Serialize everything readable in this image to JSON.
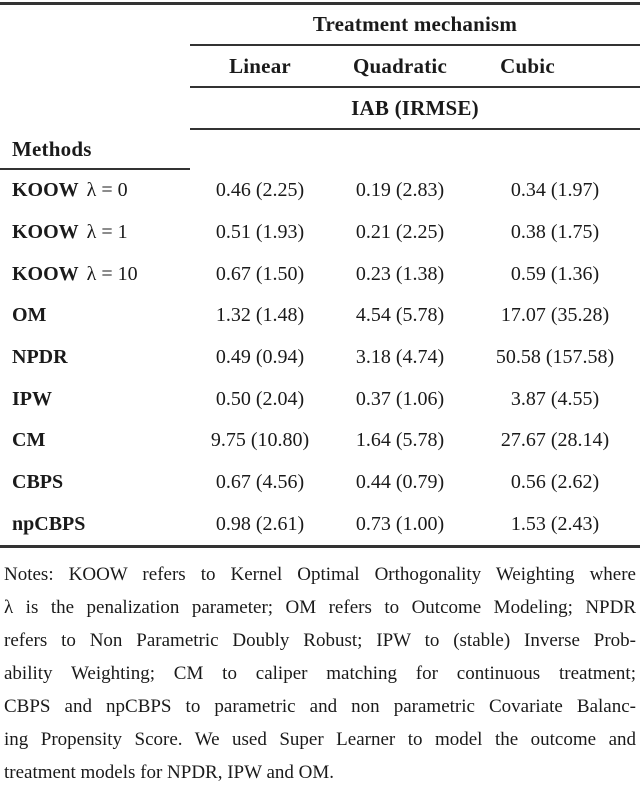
{
  "table": {
    "top_header": "Treatment mechanism",
    "col_headers": [
      "Linear",
      "Quadratic",
      "Cubic"
    ],
    "subheader": "IAB (IRMSE)",
    "methods_label": "Methods",
    "rows": [
      {
        "method": "KOOW",
        "param": "λ = 0",
        "values": [
          "0.46 (2.25)",
          "0.19 (2.83)",
          "0.34 (1.97)"
        ]
      },
      {
        "method": "KOOW",
        "param": "λ = 1",
        "values": [
          "0.51 (1.93)",
          "0.21 (2.25)",
          "0.38 (1.75)"
        ]
      },
      {
        "method": "KOOW",
        "param": "λ = 10",
        "values": [
          "0.67 (1.50)",
          "0.23 (1.38)",
          "0.59 (1.36)"
        ]
      },
      {
        "method": "OM",
        "param": "",
        "values": [
          "1.32 (1.48)",
          "4.54 (5.78)",
          "17.07 (35.28)"
        ]
      },
      {
        "method": "NPDR",
        "param": "",
        "values": [
          "0.49 (0.94)",
          "3.18 (4.74)",
          "50.58 (157.58)"
        ]
      },
      {
        "method": "IPW",
        "param": "",
        "values": [
          "0.50 (2.04)",
          "0.37 (1.06)",
          "3.87 (4.55)"
        ]
      },
      {
        "method": "CM",
        "param": "",
        "values": [
          "9.75 (10.80)",
          "1.64 (5.78)",
          "27.67 (28.14)"
        ]
      },
      {
        "method": "CBPS",
        "param": "",
        "values": [
          "0.67 (4.56)",
          "0.44 (0.79)",
          "0.56 (2.62)"
        ]
      },
      {
        "method": "npCBPS",
        "param": "",
        "values": [
          "0.98 (2.61)",
          "0.73 (1.00)",
          "1.53 (2.43)"
        ]
      }
    ]
  },
  "notes": {
    "lines": [
      "Notes:  KOOW refers to Kernel Optimal Orthogonality Weighting where",
      "λ is the penalization parameter; OM refers to Outcome Modeling; NPDR",
      "refers to Non Parametric Doubly Robust; IPW to (stable) Inverse Prob-",
      "ability Weighting; CM to caliper matching for continuous treatment;",
      "CBPS and npCBPS to parametric and non parametric Covariate Balanc-",
      "ing Propensity Score. We used Super Learner to model the outcome and",
      "treatment models for NPDR, IPW and OM."
    ]
  },
  "colors": {
    "text": "#1a1a1a",
    "rule": "#333333",
    "background": "#ffffff"
  }
}
